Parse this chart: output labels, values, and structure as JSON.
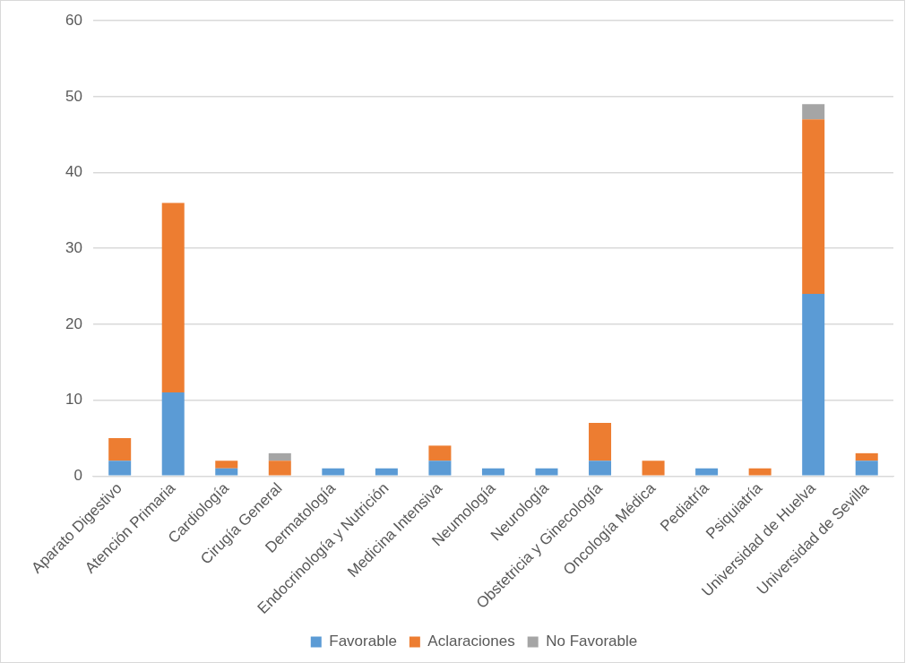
{
  "chart_data": {
    "type": "bar",
    "stacked": true,
    "categories": [
      "Aparato Digestivo",
      "Atención Primaria",
      "Cardiología",
      "Cirugía General",
      "Dermatología",
      "Endocrinología y Nutrición",
      "Medicina Intensiva",
      "Neumología",
      "Neurología",
      "Obstetricia y Ginecología",
      "Oncología Médica",
      "Pediatría",
      "Psiquiatría",
      "Universidad de Huelva",
      "Universidad de Sevilla"
    ],
    "series": [
      {
        "name": "Favorable",
        "color": "#5b9bd5",
        "values": [
          2,
          11,
          1,
          0,
          1,
          1,
          2,
          1,
          1,
          2,
          0,
          1,
          0,
          24,
          2
        ]
      },
      {
        "name": "Aclaraciones",
        "color": "#ed7d31",
        "values": [
          3,
          25,
          1,
          2,
          0,
          0,
          2,
          0,
          0,
          5,
          2,
          0,
          1,
          23,
          1
        ]
      },
      {
        "name": "No Favorable",
        "color": "#a5a5a5",
        "values": [
          0,
          0,
          0,
          1,
          0,
          0,
          0,
          0,
          0,
          0,
          0,
          0,
          0,
          2,
          0
        ]
      }
    ],
    "ylim": [
      0,
      60
    ],
    "yticks": [
      0,
      10,
      20,
      30,
      40,
      50,
      60
    ],
    "grid": "y",
    "legend": "bottom"
  }
}
